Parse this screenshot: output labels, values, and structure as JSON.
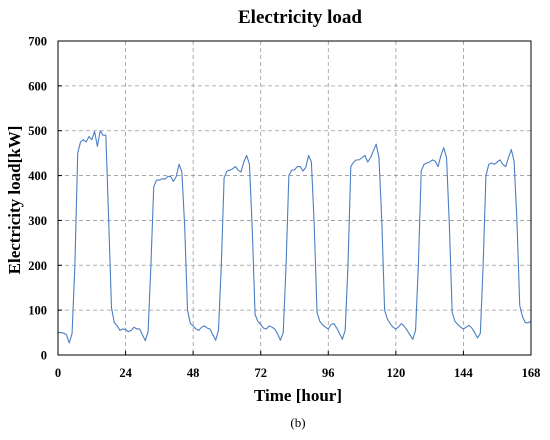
{
  "figure": {
    "caption": "(b)"
  },
  "chart_data": {
    "type": "line",
    "title": "Electricity load",
    "xlabel": "Time [hour]",
    "ylabel": "Electricity load[kW]",
    "xlim": [
      0,
      168
    ],
    "ylim": [
      0,
      700
    ],
    "xticks": [
      0,
      24,
      48,
      72,
      96,
      120,
      144,
      168
    ],
    "yticks": [
      0,
      100,
      200,
      300,
      400,
      500,
      600,
      700
    ],
    "grid": true,
    "grid_style": "dashed",
    "legend": "none",
    "colors": {
      "line": "#4a7ec4",
      "grid": "#9a9a9a",
      "axis": "#000000"
    },
    "series": [
      {
        "values": [
          [
            0,
            50
          ],
          [
            1,
            50
          ],
          [
            2,
            49
          ],
          [
            3,
            45
          ],
          [
            4,
            27
          ],
          [
            5,
            48
          ],
          [
            6,
            200
          ],
          [
            7,
            450
          ],
          [
            8,
            475
          ],
          [
            9,
            480
          ],
          [
            10,
            475
          ],
          [
            11,
            487
          ],
          [
            12,
            480
          ],
          [
            13,
            498
          ],
          [
            14,
            465
          ],
          [
            15,
            500
          ],
          [
            16,
            490
          ],
          [
            17,
            490
          ],
          [
            18,
            300
          ],
          [
            19,
            105
          ],
          [
            20,
            72
          ],
          [
            21,
            65
          ],
          [
            22,
            55
          ],
          [
            23,
            58
          ],
          [
            24,
            57
          ],
          [
            25,
            52
          ],
          [
            26,
            55
          ],
          [
            27,
            62
          ],
          [
            28,
            58
          ],
          [
            29,
            58
          ],
          [
            30,
            45
          ],
          [
            31,
            32
          ],
          [
            32,
            52
          ],
          [
            33,
            200
          ],
          [
            34,
            375
          ],
          [
            35,
            390
          ],
          [
            36,
            390
          ],
          [
            37,
            393
          ],
          [
            38,
            392
          ],
          [
            39,
            398
          ],
          [
            40,
            398
          ],
          [
            41,
            387
          ],
          [
            42,
            398
          ],
          [
            43,
            425
          ],
          [
            44,
            408
          ],
          [
            45,
            285
          ],
          [
            46,
            100
          ],
          [
            47,
            70
          ],
          [
            48,
            65
          ],
          [
            49,
            58
          ],
          [
            50,
            55
          ],
          [
            51,
            62
          ],
          [
            52,
            65
          ],
          [
            53,
            60
          ],
          [
            54,
            58
          ],
          [
            55,
            45
          ],
          [
            56,
            33
          ],
          [
            57,
            55
          ],
          [
            58,
            200
          ],
          [
            59,
            395
          ],
          [
            60,
            410
          ],
          [
            61,
            412
          ],
          [
            62,
            415
          ],
          [
            63,
            420
          ],
          [
            64,
            412
          ],
          [
            65,
            408
          ],
          [
            66,
            430
          ],
          [
            67,
            445
          ],
          [
            68,
            425
          ],
          [
            69,
            280
          ],
          [
            70,
            90
          ],
          [
            71,
            75
          ],
          [
            72,
            68
          ],
          [
            73,
            60
          ],
          [
            74,
            58
          ],
          [
            75,
            65
          ],
          [
            76,
            62
          ],
          [
            77,
            58
          ],
          [
            78,
            47
          ],
          [
            79,
            33
          ],
          [
            80,
            50
          ],
          [
            81,
            200
          ],
          [
            82,
            400
          ],
          [
            83,
            412
          ],
          [
            84,
            413
          ],
          [
            85,
            420
          ],
          [
            86,
            420
          ],
          [
            87,
            410
          ],
          [
            88,
            418
          ],
          [
            89,
            445
          ],
          [
            90,
            430
          ],
          [
            91,
            290
          ],
          [
            92,
            95
          ],
          [
            93,
            75
          ],
          [
            94,
            67
          ],
          [
            95,
            62
          ],
          [
            96,
            58
          ],
          [
            97,
            68
          ],
          [
            98,
            70
          ],
          [
            99,
            60
          ],
          [
            100,
            48
          ],
          [
            101,
            35
          ],
          [
            102,
            55
          ],
          [
            103,
            200
          ],
          [
            104,
            420
          ],
          [
            105,
            430
          ],
          [
            106,
            435
          ],
          [
            107,
            435
          ],
          [
            108,
            440
          ],
          [
            109,
            445
          ],
          [
            110,
            430
          ],
          [
            111,
            440
          ],
          [
            112,
            455
          ],
          [
            113,
            470
          ],
          [
            114,
            440
          ],
          [
            115,
            300
          ],
          [
            116,
            100
          ],
          [
            117,
            80
          ],
          [
            118,
            70
          ],
          [
            119,
            62
          ],
          [
            120,
            58
          ],
          [
            121,
            63
          ],
          [
            122,
            70
          ],
          [
            123,
            64
          ],
          [
            124,
            55
          ],
          [
            125,
            45
          ],
          [
            126,
            35
          ],
          [
            127,
            55
          ],
          [
            128,
            200
          ],
          [
            129,
            410
          ],
          [
            130,
            425
          ],
          [
            131,
            428
          ],
          [
            132,
            430
          ],
          [
            133,
            435
          ],
          [
            134,
            432
          ],
          [
            135,
            420
          ],
          [
            136,
            445
          ],
          [
            137,
            462
          ],
          [
            138,
            440
          ],
          [
            139,
            290
          ],
          [
            140,
            95
          ],
          [
            141,
            75
          ],
          [
            142,
            68
          ],
          [
            143,
            62
          ],
          [
            144,
            58
          ],
          [
            145,
            62
          ],
          [
            146,
            66
          ],
          [
            147,
            60
          ],
          [
            148,
            50
          ],
          [
            149,
            38
          ],
          [
            150,
            48
          ],
          [
            151,
            200
          ],
          [
            152,
            400
          ],
          [
            153,
            425
          ],
          [
            154,
            428
          ],
          [
            155,
            425
          ],
          [
            156,
            430
          ],
          [
            157,
            435
          ],
          [
            158,
            425
          ],
          [
            159,
            420
          ],
          [
            160,
            440
          ],
          [
            161,
            458
          ],
          [
            162,
            432
          ],
          [
            163,
            300
          ],
          [
            164,
            110
          ],
          [
            165,
            85
          ],
          [
            166,
            72
          ],
          [
            167,
            72
          ],
          [
            168,
            75
          ]
        ]
      }
    ]
  }
}
